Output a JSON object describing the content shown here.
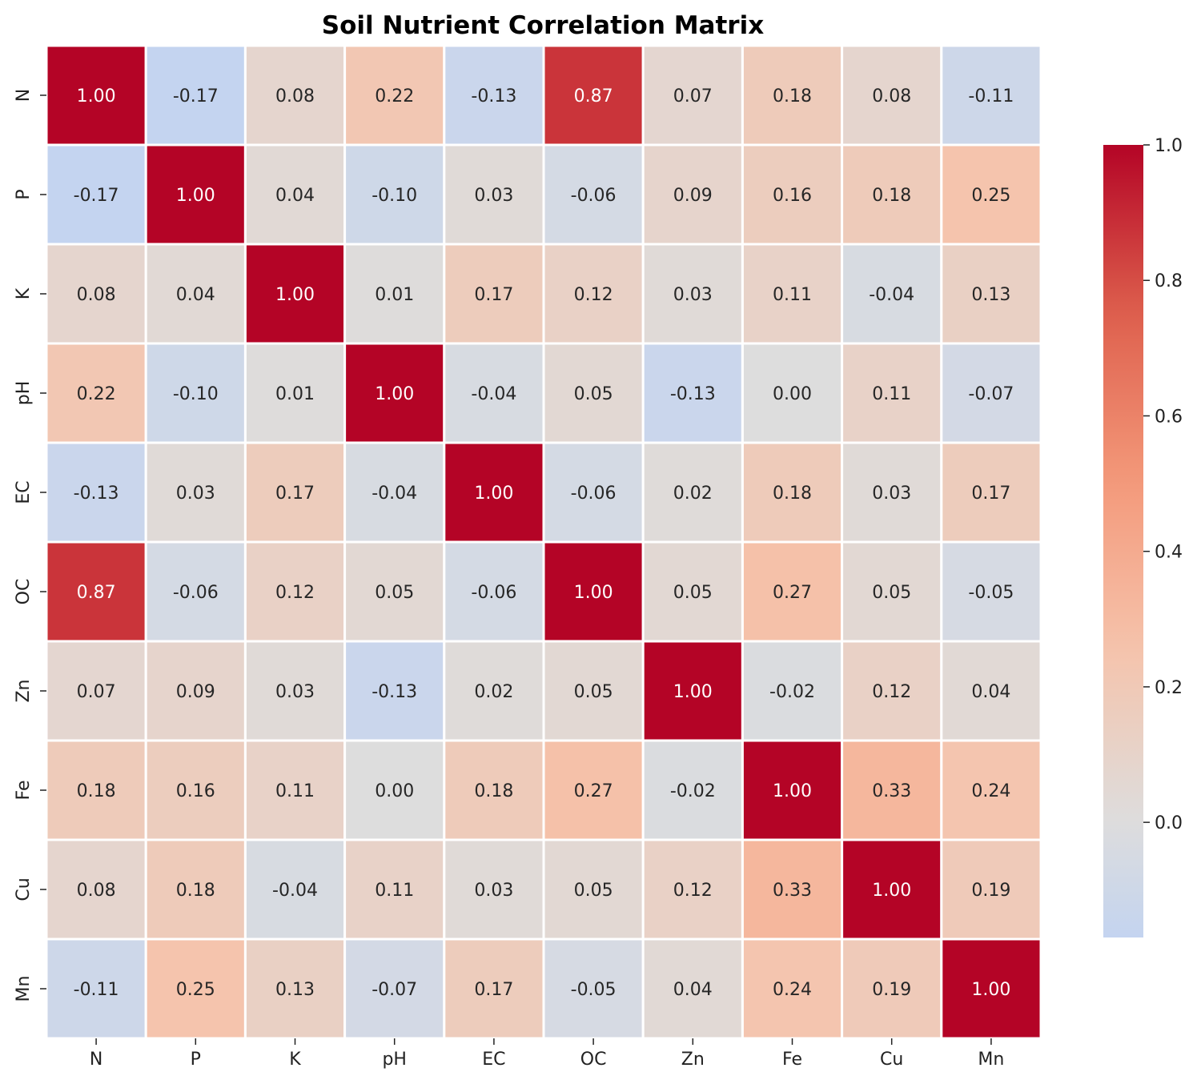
{
  "chart_data": {
    "type": "heatmap",
    "title": "Soil Nutrient Correlation Matrix",
    "xlabel": "",
    "ylabel": "",
    "x_labels": [
      "N",
      "P",
      "K",
      "pH",
      "EC",
      "OC",
      "Zn",
      "Fe",
      "Cu",
      "Mn"
    ],
    "y_labels": [
      "N",
      "P",
      "K",
      "pH",
      "EC",
      "OC",
      "Zn",
      "Fe",
      "Cu",
      "Mn"
    ],
    "values": [
      [
        1.0,
        -0.17,
        0.08,
        0.22,
        -0.13,
        0.87,
        0.07,
        0.18,
        0.08,
        -0.11
      ],
      [
        -0.17,
        1.0,
        0.04,
        -0.1,
        0.03,
        -0.06,
        0.09,
        0.16,
        0.18,
        0.25
      ],
      [
        0.08,
        0.04,
        1.0,
        0.01,
        0.17,
        0.12,
        0.03,
        0.11,
        -0.04,
        0.13
      ],
      [
        0.22,
        -0.1,
        0.01,
        1.0,
        -0.04,
        0.05,
        -0.13,
        0.0,
        0.11,
        -0.07
      ],
      [
        -0.13,
        0.03,
        0.17,
        -0.04,
        1.0,
        -0.06,
        0.02,
        0.18,
        0.03,
        0.17
      ],
      [
        0.87,
        -0.06,
        0.12,
        0.05,
        -0.06,
        1.0,
        0.05,
        0.27,
        0.05,
        -0.05
      ],
      [
        0.07,
        0.09,
        0.03,
        -0.13,
        0.02,
        0.05,
        1.0,
        -0.02,
        0.12,
        0.04
      ],
      [
        0.18,
        0.16,
        0.11,
        0.0,
        0.18,
        0.27,
        -0.02,
        1.0,
        0.33,
        0.24
      ],
      [
        0.08,
        0.18,
        -0.04,
        0.11,
        0.03,
        0.05,
        0.12,
        0.33,
        1.0,
        0.19
      ],
      [
        -0.11,
        0.25,
        0.13,
        -0.07,
        0.17,
        -0.05,
        0.04,
        0.24,
        0.19,
        1.0
      ]
    ],
    "value_format": "0.00",
    "colormap": "coolwarm",
    "center": 0,
    "vmin": -0.17,
    "vmax": 1.0,
    "colorbar_ticks": [
      "0.0",
      "0.2",
      "0.4",
      "0.6",
      "0.8",
      "1.0"
    ],
    "colorbar_tick_values": [
      0.0,
      0.2,
      0.4,
      0.6,
      0.8,
      1.0
    ],
    "grid_line_color": "#ffffff",
    "legend_position": "right"
  }
}
